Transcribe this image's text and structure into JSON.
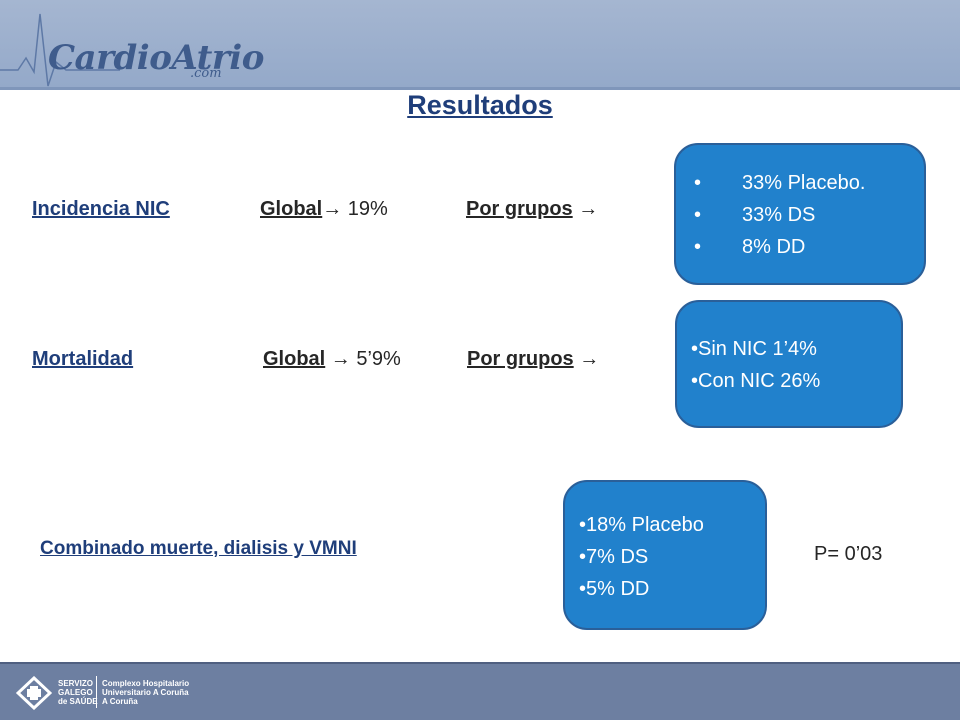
{
  "header": {
    "logo_text": "CardioAtrio",
    "logo_sub": ".com",
    "accent_color": "#94a9c9",
    "icon": "ecg-line-icon"
  },
  "title": "Resultados",
  "row1": {
    "label": "Incidencia NIC",
    "global_label": "Global",
    "global_value": " 19%",
    "groups_label": "Por grupos",
    "arrow": "→",
    "items": [
      "33% Placebo.",
      "33% DS",
      "8% DD"
    ]
  },
  "row2": {
    "label": "Mortalidad",
    "global_label": "Global",
    "global_value": " 5’9%",
    "groups_label": "Por grupos",
    "arrow": "→",
    "items": [
      "Sin NIC 1’4%",
      "Con NIC 26%"
    ]
  },
  "row3": {
    "label": "Combinado muerte, dialisis y VMNI",
    "items": [
      "18% Placebo",
      "7% DS",
      "5% DD"
    ],
    "p_value": "P= 0’03"
  },
  "footer": {
    "org_lines": [
      "SERVIZO",
      "GALEGO",
      "de SAÚDE"
    ],
    "hospital_lines": [
      "Complexo Hospitalario",
      "Universitario A Coruña",
      "A Coruña"
    ],
    "emblem_icon": "sergas-emblem-icon"
  },
  "colors": {
    "box_fill": "#2181cc",
    "heading": "#1f3e7a",
    "footer": "#6d7fa1"
  }
}
